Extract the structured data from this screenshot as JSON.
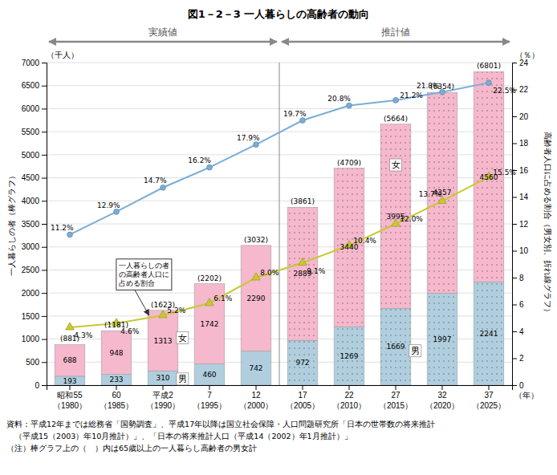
{
  "chart_data": {
    "type": "bar",
    "title": "図1－2－3 一人暮らしの高齢者の動向",
    "categories": [
      "昭和55\n（1980）",
      "60\n（1985）",
      "平成2\n（1990）",
      "7\n（1995）",
      "12\n（2000）",
      "17\n（2005）",
      "22\n（2010）",
      "27\n（2015）",
      "32\n（2020）",
      "37\n（2025）"
    ],
    "xlabel": "（年）",
    "ylabel": "一人暮らしの者（棒グラフ）",
    "yunit": "（千人）",
    "y2label": "高齢者人口に占める割合（男女別、折れ線グラフ）",
    "y2unit": "（％）",
    "ylim": [
      0,
      7000
    ],
    "yticks": [
      0,
      500,
      1000,
      1500,
      2000,
      2500,
      3000,
      3500,
      4000,
      4500,
      5000,
      5500,
      6000,
      6500,
      7000
    ],
    "y2lim": [
      0,
      24
    ],
    "y2ticks": [
      0,
      2,
      4,
      6,
      8,
      10,
      12,
      14,
      16,
      18,
      20,
      22,
      24
    ],
    "stacked": true,
    "grid": true,
    "series": [
      {
        "name": "男",
        "type": "bar",
        "color": "#B0CEDE",
        "values": [
          193,
          233,
          310,
          460,
          742,
          972,
          1269,
          1669,
          1997,
          2241
        ],
        "data_labels": true
      },
      {
        "name": "女",
        "type": "bar",
        "color": "#F5B8CC",
        "values": [
          688,
          948,
          1313,
          1742,
          2290,
          2889,
          3440,
          3995,
          4357,
          4560
        ],
        "data_labels": true
      },
      {
        "type": "line",
        "axis": "y2",
        "color": "#7AAED6",
        "marker": "circle",
        "values": [
          11.2,
          12.9,
          14.7,
          16.2,
          17.9,
          19.7,
          20.8,
          21.2,
          21.8,
          22.5
        ],
        "value_labels": [
          "11.2%",
          "12.9%",
          "14.7%",
          "16.2%",
          "17.9%",
          "19.7%",
          "20.8%",
          "21.2%",
          "21.8%",
          "22.5%"
        ],
        "data_labels": true
      },
      {
        "type": "line",
        "axis": "y2",
        "color": "#C8C832",
        "marker": "triangle",
        "values": [
          4.3,
          4.6,
          5.2,
          6.1,
          8.0,
          9.1,
          10.4,
          12.0,
          13.7,
          15.5
        ],
        "value_labels": [
          "4.3%",
          "4.6%",
          "5.2%",
          "6.1%",
          "8.0%",
          "9.1%",
          "10.4%",
          "12.0%",
          "13.7%",
          "15.5%"
        ],
        "data_labels": true
      }
    ],
    "totals": {
      "values": [
        881,
        1181,
        1623,
        2202,
        3032,
        3861,
        4709,
        5664,
        6354,
        6801
      ],
      "value_labels": [
        "(881)",
        "(1181)",
        "(1623)",
        "(2202)",
        "(3032)",
        "(3861)",
        "(4709)",
        "(5664)",
        "(6354)",
        "(6801)"
      ]
    },
    "periods": [
      {
        "label": "実績値",
        "first": "昭和55\n（1980）",
        "last": "12\n（2000）"
      },
      {
        "label": "推計値",
        "first": "17\n（2005）",
        "last": "37\n（2025）"
      }
    ],
    "annotations": [
      {
        "text": "一人暮らしの者\nの高齢者人口に\n占める割合"
      }
    ],
    "notes": [
      "資料：平成12年までは総務省「国勢調査」、平成17年以降は国立社会保障・人口問題研究所「日本の世帯数の将来推計",
      "　（平成15（2003）年10月推計）」、「日本の将来推計人口（平成14（2002）年1月推計）」",
      "（注）棒グラフ上の（　）内は65歳以上の一人暮らし高齢者の男女計"
    ]
  }
}
